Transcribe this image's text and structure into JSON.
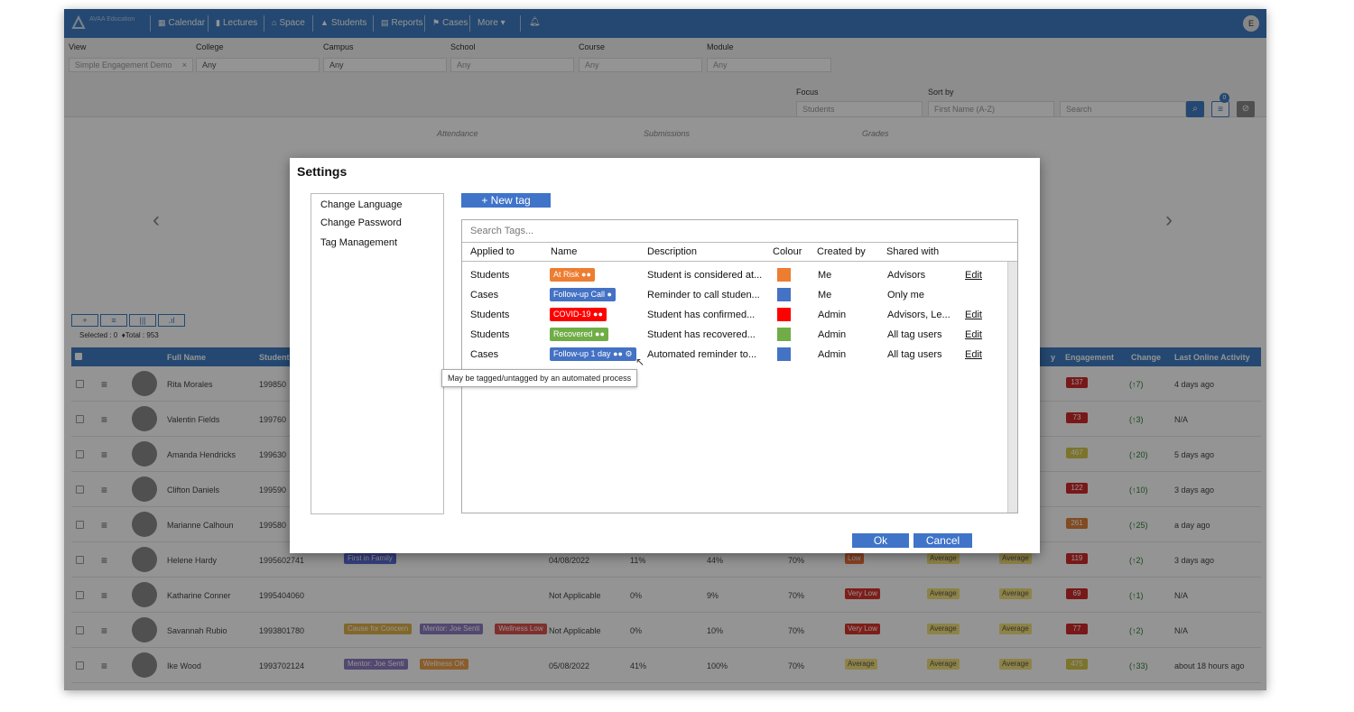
{
  "nav": {
    "brand": "AVAA Education",
    "items": [
      "Calendar",
      "Lectures",
      "Space",
      "Students",
      "Reports",
      "Cases",
      "More"
    ],
    "avatar": "E"
  },
  "filters": {
    "view_label": "View",
    "view_value": "Simple Engagement Demo",
    "college_label": "College",
    "college_value": "Any",
    "campus_label": "Campus",
    "campus_value": "Any",
    "school_label": "School",
    "school_value": "Any",
    "course_label": "Course",
    "course_value": "Any",
    "module_label": "Module",
    "module_value": "Any",
    "focus_label": "Focus",
    "focus_value": "Students",
    "sort_label": "Sort by",
    "sort_value": "First Name (A-Z)",
    "search_placeholder": "Search",
    "filter_badge": "0"
  },
  "metrics": [
    "Attendance",
    "Submissions",
    "Grades"
  ],
  "table": {
    "selected_text": "Selected : 0",
    "total_text": "Total : 953",
    "headers": {
      "name": "Full Name",
      "student": "Student",
      "y": "y",
      "engagement": "Engagement",
      "change": "Change",
      "last": "Last Online Activity"
    },
    "rows": [
      {
        "name": "Rita Morales",
        "id": "199850",
        "score": "137",
        "change": "(↑7)",
        "last": "4 days ago"
      },
      {
        "name": "Valentin Fields",
        "id": "199760",
        "score": "73",
        "change": "(↑3)",
        "last": "N/A"
      },
      {
        "name": "Amanda Hendricks",
        "id": "199630",
        "score": "467",
        "change": "(↑20)",
        "last": "5 days ago"
      },
      {
        "name": "Clifton Daniels",
        "id": "199590",
        "score": "122",
        "change": "(↑10)",
        "last": "3 days ago"
      },
      {
        "name": "Marianne Calhoun",
        "id": "199580",
        "score": "261",
        "change": "(↑25)",
        "last": "a day ago"
      },
      {
        "name": "Helene Hardy",
        "id": "1995602741",
        "tags": [
          "First in Family"
        ],
        "date": "04/08/2022",
        "p1": "11%",
        "p2": "44%",
        "p3": "70%",
        "level": "Low",
        "score": "119",
        "change": "(↑2)",
        "last": "3 days ago"
      },
      {
        "name": "Katharine Conner",
        "id": "1995404060",
        "tags": [],
        "date": "Not Applicable",
        "p1": "0%",
        "p2": "9%",
        "p3": "70%",
        "level": "Very Low",
        "score": "69",
        "change": "(↑1)",
        "last": "N/A"
      },
      {
        "name": "Savannah Rubio",
        "id": "1993801780",
        "tags": [
          "Cause for Concern",
          "Mentor: Joe Senti",
          "Wellness Low"
        ],
        "date": "Not Applicable",
        "p1": "0%",
        "p2": "10%",
        "p3": "70%",
        "level": "Very Low",
        "score": "77",
        "change": "(↑2)",
        "last": "N/A"
      },
      {
        "name": "Ike Wood",
        "id": "1993702124",
        "tags": [
          "Mentor: Joe Senti",
          "Wellness OK"
        ],
        "date": "05/08/2022",
        "p1": "41%",
        "p2": "100%",
        "p3": "70%",
        "level": "Average",
        "score": "475",
        "change": "(↑33)",
        "last": "about 18 hours ago"
      }
    ],
    "level_avg": "Average"
  },
  "modal": {
    "title": "Settings",
    "menu": [
      "Change Language",
      "Change Password",
      "Tag Management"
    ],
    "new_tag": "+  New tag",
    "search_placeholder": "Search Tags...",
    "columns": [
      "Applied to",
      "Name",
      "Description",
      "Colour",
      "Created by",
      "Shared with"
    ],
    "tags": [
      {
        "applied": "Students",
        "name": "At Risk",
        "desc": "Student is considered at...",
        "colour": "#ed7d31",
        "created": "Me",
        "shared": "Advisors",
        "edit": "Edit"
      },
      {
        "applied": "Cases",
        "name": "Follow-up Call",
        "desc": "Reminder to call studen...",
        "colour": "#4472c4",
        "created": "Me",
        "shared": "Only me",
        "edit": ""
      },
      {
        "applied": "Students",
        "name": "COVID-19",
        "desc": "Student has confirmed...",
        "colour": "#ff0000",
        "created": "Admin",
        "shared": "Advisors, Le...",
        "edit": "Edit"
      },
      {
        "applied": "Students",
        "name": "Recovered",
        "desc": "Student has recovered...",
        "colour": "#70ad47",
        "created": "Admin",
        "shared": "All tag users",
        "edit": "Edit"
      },
      {
        "applied": "Cases",
        "name": "Follow-up 1 day",
        "desc": "Automated reminder to...",
        "colour": "#4472c4",
        "created": "Admin",
        "shared": "All tag users",
        "edit": "Edit"
      }
    ],
    "tooltip": "May be tagged/untagged by an automated process",
    "ok": "Ok",
    "cancel": "Cancel"
  }
}
